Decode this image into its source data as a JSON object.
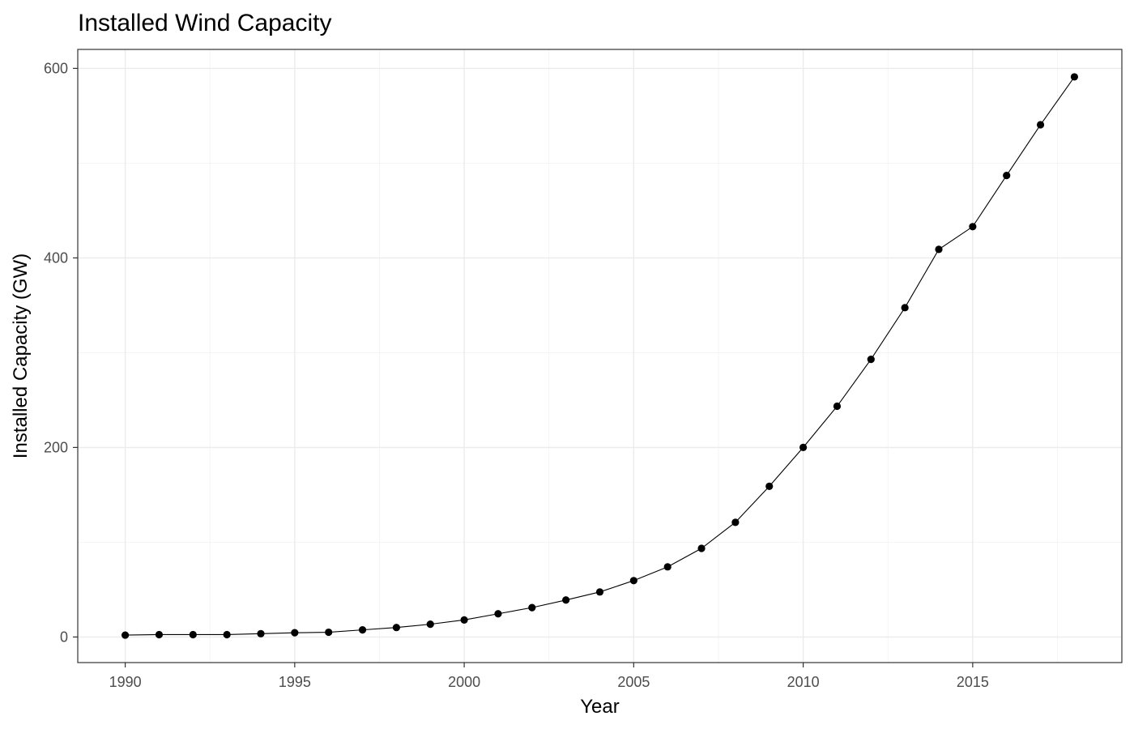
{
  "chart_data": {
    "type": "line",
    "title": "Installed Wind Capacity",
    "xlabel": "Year",
    "ylabel": "Installed Capacity (GW)",
    "xlim": [
      1988.6,
      2019.4
    ],
    "ylim": [
      -27,
      620
    ],
    "x_ticks": [
      1990,
      1995,
      2000,
      2005,
      2010,
      2015
    ],
    "y_ticks": [
      0,
      200,
      400,
      600
    ],
    "x_minor_ticks": [
      1992.5,
      1997.5,
      2002.5,
      2007.5,
      2012.5,
      2017.5
    ],
    "y_minor_ticks": [
      100,
      300,
      500
    ],
    "grid": true,
    "legend": "none",
    "colors": {
      "line": "#000000",
      "point": "#000000",
      "grid": "#ebebeb",
      "border": "#333333"
    },
    "series": [
      {
        "x": [
          1990,
          1991,
          1992,
          1993,
          1994,
          1995,
          1996,
          1997,
          1998,
          1999,
          2000,
          2001,
          2002,
          2003,
          2004,
          2005,
          2006,
          2007,
          2008,
          2009,
          2010,
          2011,
          2012,
          2013,
          2014,
          2015,
          2016,
          2017,
          2018
        ],
        "values": [
          2,
          2.5,
          2.5,
          2.5,
          3.5,
          4.5,
          5,
          7.5,
          10,
          13.5,
          18,
          24.5,
          31,
          39,
          47.5,
          59.5,
          74,
          93.5,
          121,
          159,
          200,
          243.5,
          293,
          347.5,
          409,
          433,
          487,
          540.5,
          591
        ]
      }
    ]
  }
}
